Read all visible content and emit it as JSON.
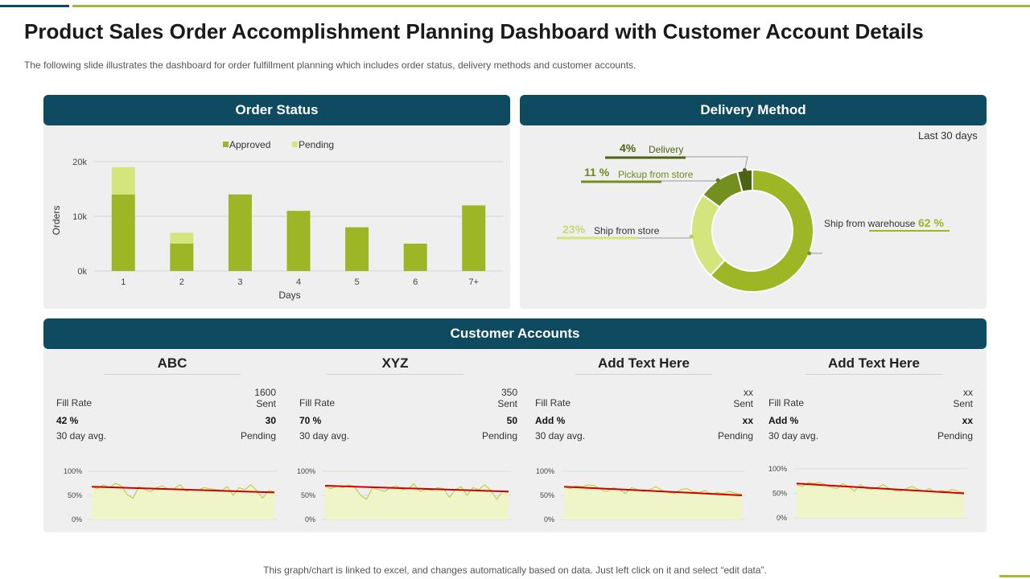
{
  "page": {
    "title": "Product Sales Order Accomplishment Planning Dashboard with Customer Account Details",
    "subtitle": "The following slide illustrates the dashboard for order fulfillment planning which includes order status, delivery methods and customer accounts.",
    "footer": "This graph/chart is linked to excel,  and changes automatically based on data. Just left click on it and select “edit data”."
  },
  "colors": {
    "header_bg": "#0e4a60",
    "approved": "#9db625",
    "pending": "#d3e57c",
    "dark_green": "#5e7a1c",
    "trend_red": "#cc0000",
    "area_fill": "#f0f4c9"
  },
  "order_status": {
    "header": "Order Status",
    "chart_data": {
      "type": "bar",
      "categories": [
        "1",
        "2",
        "3",
        "4",
        "5",
        "6",
        "7+"
      ],
      "series": [
        {
          "name": "Approved",
          "values": [
            14000,
            5000,
            14000,
            11000,
            8000,
            5000,
            12000
          ]
        },
        {
          "name": "Pending",
          "values": [
            5000,
            2000,
            0,
            0,
            0,
            0,
            0
          ]
        }
      ],
      "stacked": true,
      "xlabel": "Days",
      "ylabel": "Orders",
      "ylim": [
        0,
        20000
      ],
      "yticks": [
        0,
        10000,
        20000
      ],
      "ytick_labels": [
        "0k",
        "10k",
        "20k"
      ],
      "grid": true,
      "legend_position": "top"
    }
  },
  "delivery_method": {
    "header": "Delivery Method",
    "period": "Last 30 days",
    "chart_data": {
      "type": "pie",
      "donut": true,
      "slices": [
        {
          "label": "Ship from warehouse",
          "value": 62,
          "pct_label": "62 %",
          "color": "#9db625"
        },
        {
          "label": "Ship from store",
          "value": 23,
          "pct_label": "23%",
          "color": "#d3e57c"
        },
        {
          "label": "Pickup from store",
          "value": 11,
          "pct_label": "11 %",
          "color": "#728f1f"
        },
        {
          "label": "Delivery",
          "value": 4,
          "pct_label": "4%",
          "color": "#4c6215"
        }
      ]
    }
  },
  "customer_accounts": {
    "header": "Customer Accounts",
    "accounts": [
      {
        "name": "ABC",
        "fill_rate_label": "Fill Rate",
        "fill_rate": "42 %",
        "avg_label": "30 day avg.",
        "sent_value": "1600",
        "sent_label": "Sent",
        "pending_value": "30",
        "pending_label": "Pending"
      },
      {
        "name": "XYZ",
        "fill_rate_label": "Fill Rate",
        "fill_rate": "70 %",
        "avg_label": "30 day avg.",
        "sent_value": "350",
        "sent_label": "Sent",
        "pending_value": "50",
        "pending_label": "Pending"
      },
      {
        "name": "Add Text Here",
        "fill_rate_label": "Fill Rate",
        "fill_rate": "Add %",
        "avg_label": "30 day avg.",
        "sent_value": "xx",
        "sent_label": "Sent",
        "pending_value": "xx",
        "pending_label": "Pending"
      },
      {
        "name": "Add Text Here",
        "fill_rate_label": "Fill Rate",
        "fill_rate": "Add %",
        "avg_label": "30 day avg.",
        "sent_value": "xx",
        "sent_label": "Sent",
        "pending_value": "xx",
        "pending_label": "Pending"
      }
    ],
    "sparkline_chart_data": {
      "type": "line",
      "ylim": [
        0,
        100
      ],
      "ytick_labels": [
        "0%",
        "50%",
        "100%"
      ],
      "series": [
        {
          "name": "",
          "values": [
            68,
            64,
            72,
            66,
            75,
            70,
            52,
            44,
            68,
            62,
            58,
            66,
            70,
            62,
            64,
            72,
            58,
            62,
            60,
            66,
            64,
            62,
            60,
            68,
            50,
            66,
            62,
            72,
            60,
            44,
            60,
            58
          ],
          "trend": [
            68,
            56
          ]
        },
        {
          "name": "",
          "values": [
            68,
            64,
            70,
            66,
            72,
            68,
            50,
            42,
            66,
            62,
            58,
            66,
            70,
            62,
            64,
            74,
            58,
            62,
            60,
            66,
            64,
            46,
            62,
            68,
            50,
            66,
            62,
            72,
            60,
            42,
            58,
            56
          ],
          "trend": [
            70,
            58
          ]
        },
        {
          "name": "",
          "values": [
            68,
            64,
            70,
            68,
            72,
            70,
            62,
            58,
            66,
            62,
            54,
            66,
            62,
            58,
            62,
            68,
            60,
            56,
            54,
            62,
            64,
            58,
            56,
            60,
            52,
            56,
            54,
            58,
            54,
            52
          ],
          "trend": [
            68,
            50
          ]
        },
        {
          "name": "",
          "values": [
            68,
            64,
            72,
            70,
            72,
            68,
            62,
            60,
            70,
            64,
            54,
            68,
            60,
            58,
            62,
            68,
            60,
            56,
            54,
            60,
            64,
            58,
            54,
            60,
            52,
            56,
            54,
            58,
            54,
            52
          ],
          "trend": [
            70,
            50
          ]
        }
      ]
    }
  }
}
